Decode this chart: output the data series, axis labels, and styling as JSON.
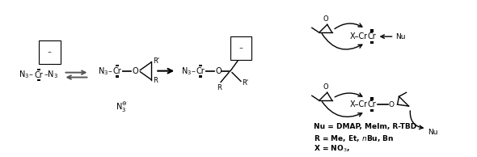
{
  "figsize": [
    5.9,
    1.94
  ],
  "dpi": 100,
  "background": "white",
  "legend": {
    "nu": "Nu = DMAP, MeIm, R-TBD",
    "r": "R = Me, Et, $n$Bu, Bn",
    "x": "X = NO$_3$,"
  }
}
